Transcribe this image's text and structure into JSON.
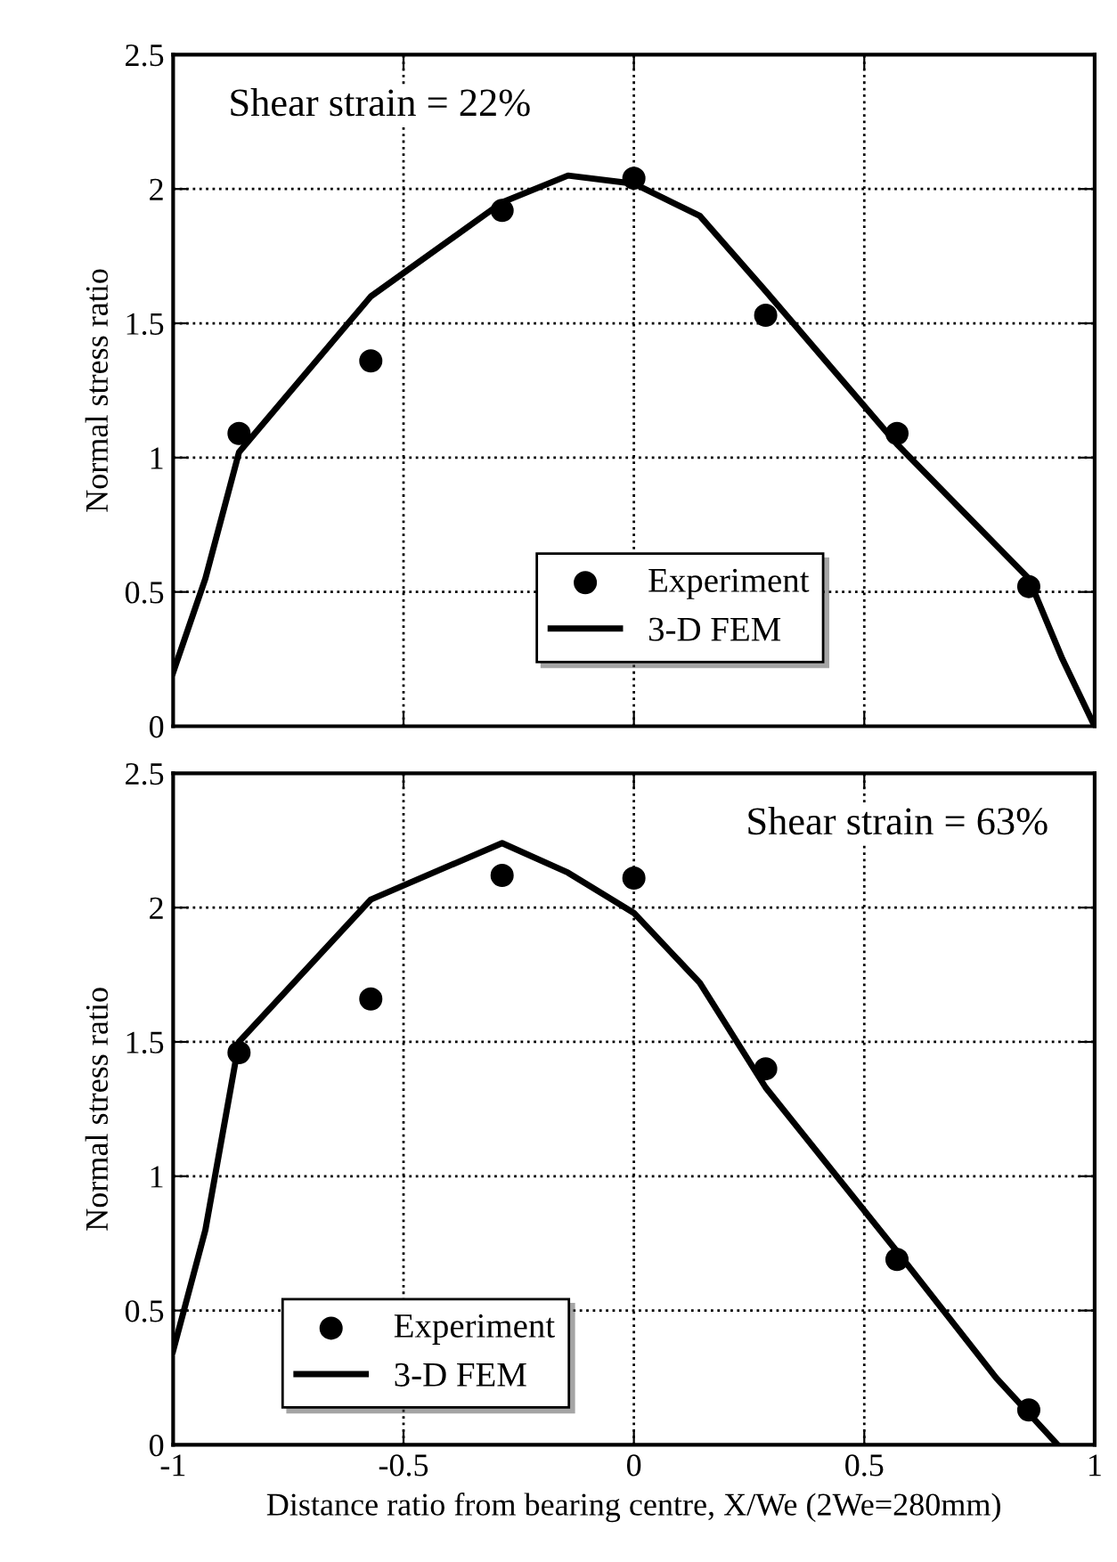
{
  "chart_data": [
    {
      "type": "scatter",
      "ylabel": "Normal stress ratio",
      "annotations": [
        "Shear strain = 22%"
      ],
      "xlim": [
        -1,
        1
      ],
      "xticks": [
        -1,
        -0.5,
        0,
        0.5,
        1
      ],
      "ylim": [
        0,
        2.5
      ],
      "yticks": [
        0,
        0.5,
        1,
        1.5,
        2,
        2.5
      ],
      "tick_labels": "y",
      "grid": true,
      "legend": "bottom",
      "series": [
        {
          "name": "Experiment",
          "color": "#000000",
          "marker": "circle",
          "x": [
            -0.857,
            -0.571,
            -0.286,
            0,
            0.286,
            0.571,
            0.857
          ],
          "values": [
            1.09,
            1.36,
            1.92,
            2.04,
            1.53,
            1.09,
            0.52
          ]
        },
        {
          "name": "3-D FEM",
          "type": "line",
          "color": "#000000",
          "line_style": "solid",
          "x": [
            -1,
            -0.93,
            -0.857,
            -0.571,
            -0.286,
            -0.143,
            0,
            0.143,
            0.286,
            0.571,
            0.857,
            0.93,
            1
          ],
          "values": [
            0.2,
            0.55,
            1.02,
            1.6,
            1.95,
            2.05,
            2.02,
            1.9,
            1.62,
            1.05,
            0.55,
            0.25,
            0
          ]
        }
      ]
    },
    {
      "type": "scatter",
      "xlabel": "Distance ratio from bearing centre, X/We (2We=280mm)",
      "ylabel": "Normal stress ratio",
      "annotations": [
        "Shear strain = 63%"
      ],
      "xlim": [
        -1,
        1
      ],
      "xticks": [
        -1,
        -0.5,
        0,
        0.5,
        1
      ],
      "ylim": [
        0,
        2.5
      ],
      "yticks": [
        0,
        0.5,
        1,
        1.5,
        2,
        2.5
      ],
      "grid": true,
      "legend": "bottom left",
      "series": [
        {
          "name": "Experiment",
          "color": "#000000",
          "marker": "circle",
          "x": [
            -0.857,
            -0.571,
            -0.286,
            0,
            0.286,
            0.571,
            0.857
          ],
          "values": [
            1.46,
            1.66,
            2.12,
            2.11,
            1.4,
            0.69,
            0.13
          ]
        },
        {
          "name": "3-D FEM",
          "type": "line",
          "color": "#000000",
          "line_style": "solid",
          "x": [
            -1,
            -0.93,
            -0.857,
            -0.571,
            -0.286,
            -0.143,
            0,
            0.143,
            0.286,
            0.571,
            0.786,
            0.92
          ],
          "values": [
            0.35,
            0.8,
            1.5,
            2.03,
            2.24,
            2.13,
            1.98,
            1.72,
            1.33,
            0.72,
            0.25,
            0
          ]
        }
      ]
    }
  ]
}
